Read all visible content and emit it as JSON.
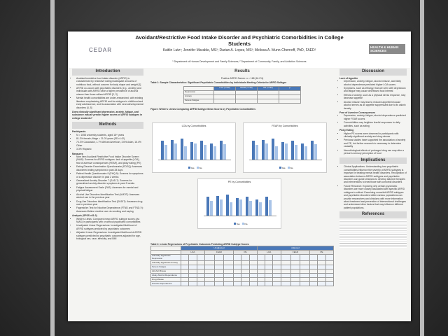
{
  "header": {
    "title": "Avoidant/Restrictive Food Intake Disorder and Psychiatric Comorbidities in College Students",
    "authors": "Kaitlin Lutz¹; Jennifer Marable, MS²; Darian A. Lopez, MS²; Melissa A. Munn-Chernoff, PhD, FAED²",
    "affiliations": "¹ Department of Human Development and Family Sciences; ² Department of Community, Family, and Addiction Sciences",
    "left_logo": "CEDAR",
    "right_logo": "HEALTH & HUMAN SCIENCES"
  },
  "introduction": {
    "heading": "Introduction",
    "bullets": [
      "Avoidant/restrictive food intake disorder (ARFID) is characterized by restrictive eating inadequate amounts of nutritious food, without concern for body shape and weight [1]",
      "ARFID co-occurs with psychiatric disorders (e.g., anxiety) and individuals with ARFID have a higher prevalence of alcohol misuse than those without ARFID [2, 3]",
      "Mental health comorbidities are under-researched, with existing literature emphasizing ARFID and its subtypes in childhood and early adolescence, and its association with neurodevelopmental disorders [4, 5]"
    ],
    "question": "Does clinically significant depression, anxiety, fatigue, and substance misuse predict higher scores of ARFID subtypes in college students?"
  },
  "methods": {
    "heading": "Methods",
    "participants": "Participants",
    "participant_items": [
      "N = 1058 university students, aged 18+ years",
      "81.2% female; Mage = 21.03 years (SD=4.42)",
      "74.2% Caucasian, 1.7% African American, 3.6% Asian, 16.4% Other",
      "3.3% Hispanic"
    ],
    "measures": "Measures",
    "measure_items": [
      "Nine Item Avoidant Restrictive Food Intake Disorder Screen (NIAS): Screens for ARFID subtypes: lack of appetite (LOA), fear of aversive consequences (FEAR), and picky eating (PE)",
      "Eating Disorder Examination Questionnaire (EDEQ): Assesses disordered eating symptoms in past 28 days",
      "Patient Health Questionnaire-9 (PHQ-9): Screens for symptoms of a depressive disorder in past 2 weeks",
      "Generalized Anxiety Disorder 7 (GAD-7): Screens for generalized anxiety disorder symptoms in past 2 weeks",
      "Fatigue Assessment Scale (FAS): Assesses for mental and physical fatigue",
      "Alcohol Use Disorders Identification Test (AUDIT): Assesses alcohol use in the previous year",
      "Drug Use Disorders Identification Test (DUDIT): Assesses drug use in previous year",
      "Fagerström Test for Nicotine Dependence (FTND and FTND-V): Assesses lifetime nicotine use via smoking and vaping"
    ],
    "analysis": "Analysis (SPSS v31.0)",
    "analysis_items": [
      "Welch's t-tests: Compared mean ARFID subtype scores (via NIAS) in participants with or without psychiatric comorbidities",
      "Unadjusted Linear Regressions: Investigated likelihood of ARFID subtypes predicted by psychiatric outcomes",
      "Adjusted Linear Regressions: Investigated likelihood of ARFID subtypes predicted by psychiatric outcomes adjusted for age, biological sex, race, ethnicity, and BMI"
    ]
  },
  "results": {
    "heading": "Results",
    "screen": "Positive ARFID Screen: n = 168 (16.2%)",
    "table1_title": "Table 1: Sample Characteristics: Significant Psychiatric Comorbidities by Individuals Meeting Criteria for ARFID Subtype",
    "table1_header": [
      "LOA (n=99)",
      "FEAR (n=33)",
      "PE (n=93)",
      "p"
    ],
    "table1_rows": [
      "Depression",
      "Anxiety",
      "Severe Fatigue"
    ],
    "figure_title": "Figure: Welch's t-tests Comparing ARFID Subtype Mean Scores by Psychiatric Comorbidities",
    "chart_titles": [
      "LOA by Comorbidities",
      "FEAR by Comorbidities",
      "PE by Comorbidities"
    ],
    "legend": [
      "Yes",
      "No"
    ],
    "table2_title": "Table 2: Linear Regressions of Psychiatric Outcomes Predicting ARFID Subtype Scores",
    "table2_groups": [
      "Unadjusted",
      "Adjusted"
    ],
    "table2_subtypes": [
      "LOA",
      "FEAR",
      "PE",
      "LOA",
      "FEAR",
      "PE"
    ],
    "table2_rows": [
      "Clinically Significant Depression",
      "Clinically Significant Anxiety",
      "Severe Fatigue",
      "Alcohol Misuse",
      "Likely Alcohol Dependence",
      "Drug Misuse",
      "Nicotine Dependence"
    ]
  },
  "discussion": {
    "heading": "Discussion",
    "sections": [
      {
        "title": "Lack of Appetite",
        "items": [
          "Depression, anxiety, fatigue, alcohol misuse, and likely alcohol dependence predicted higher LOA scores",
          "Symptoms, such as lethargy, that are seen with depression and fatigue may cause decreased food interest",
          "Effects of anxiety, such as a physical stress response, may decrease appetite",
          "Alcohol misuse may lead to reduced appetite because alcohol serves as an appetite suppressant due to its caloric density"
        ]
      },
      {
        "title": "Fear of Aversive Consequences",
        "items": [
          "Depression, anxiety, fatigue, alcohol dependence predicted higher FEAR scores",
          "Comorbidities may heighten fearful responses to daily activities, such as eating"
        ]
      },
      {
        "title": "Picky Eating",
        "items": [
          "Higher PE scores were observed in participants with clinically significant anxiety and drug misuse",
          "Previous studies have supported the association of anxiety and PE, but further research is necessary to determine causality",
          "Neurobiological effects of prolonged drug use may alter a person's sensory perception of food"
        ]
      }
    ]
  },
  "implications": {
    "heading": "Implications",
    "items": [
      "Clinical Applications: Understanding how psychiatric comorbidities influence the severity of ARFID subtypes is important in treating mental health disorders. Recognition of association between ARFID subtypes and psychiatric disorders can guide clinicians to develop tailored therapies and interventions to treat those with comorbid disorders",
      "Future Research: Exploring why certain psychiatric disorders are more closely associated with specific ARFID subtypes is critical. Examining comorbid ARFID subtypes and psychiatric disorders within various populations can provide researchers and clinicians with more information about treatment and prevention of intersectional challenges and understand other factors that may influence different patient populations."
    ]
  },
  "references": {
    "heading": "References"
  }
}
